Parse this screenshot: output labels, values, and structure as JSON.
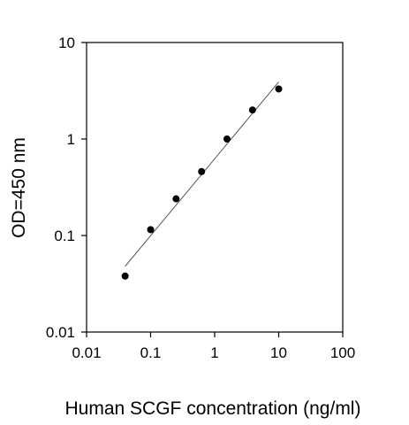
{
  "chart_data": {
    "type": "scatter",
    "title": "",
    "xlabel": "Human SCGF concentration (ng/ml)",
    "ylabel": "OD=450 nm",
    "x_scale": "log",
    "y_scale": "log",
    "xlim": [
      0.01,
      100
    ],
    "ylim": [
      0.01,
      10
    ],
    "x_ticks": [
      0.01,
      0.1,
      1,
      10,
      100
    ],
    "x_tick_labels": [
      "0.01",
      "0.1",
      "1",
      "10",
      "100"
    ],
    "y_ticks": [
      0.01,
      0.1,
      1,
      10
    ],
    "y_tick_labels": [
      "0.01",
      "0.1",
      "1",
      "10"
    ],
    "grid": false,
    "legend": "none",
    "series": [
      {
        "points": [
          {
            "x": 0.04,
            "y": 0.038
          },
          {
            "x": 0.1,
            "y": 0.115
          },
          {
            "x": 0.25,
            "y": 0.24
          },
          {
            "x": 0.625,
            "y": 0.46
          },
          {
            "x": 1.56,
            "y": 1.0
          },
          {
            "x": 3.9,
            "y": 2.0
          },
          {
            "x": 10,
            "y": 3.3
          }
        ]
      }
    ],
    "fit_line": {
      "x": [
        0.04,
        10
      ],
      "y": [
        0.048,
        3.9
      ]
    },
    "colors": {
      "marker": "#000000",
      "line": "#555555",
      "axis": "#000000"
    }
  }
}
